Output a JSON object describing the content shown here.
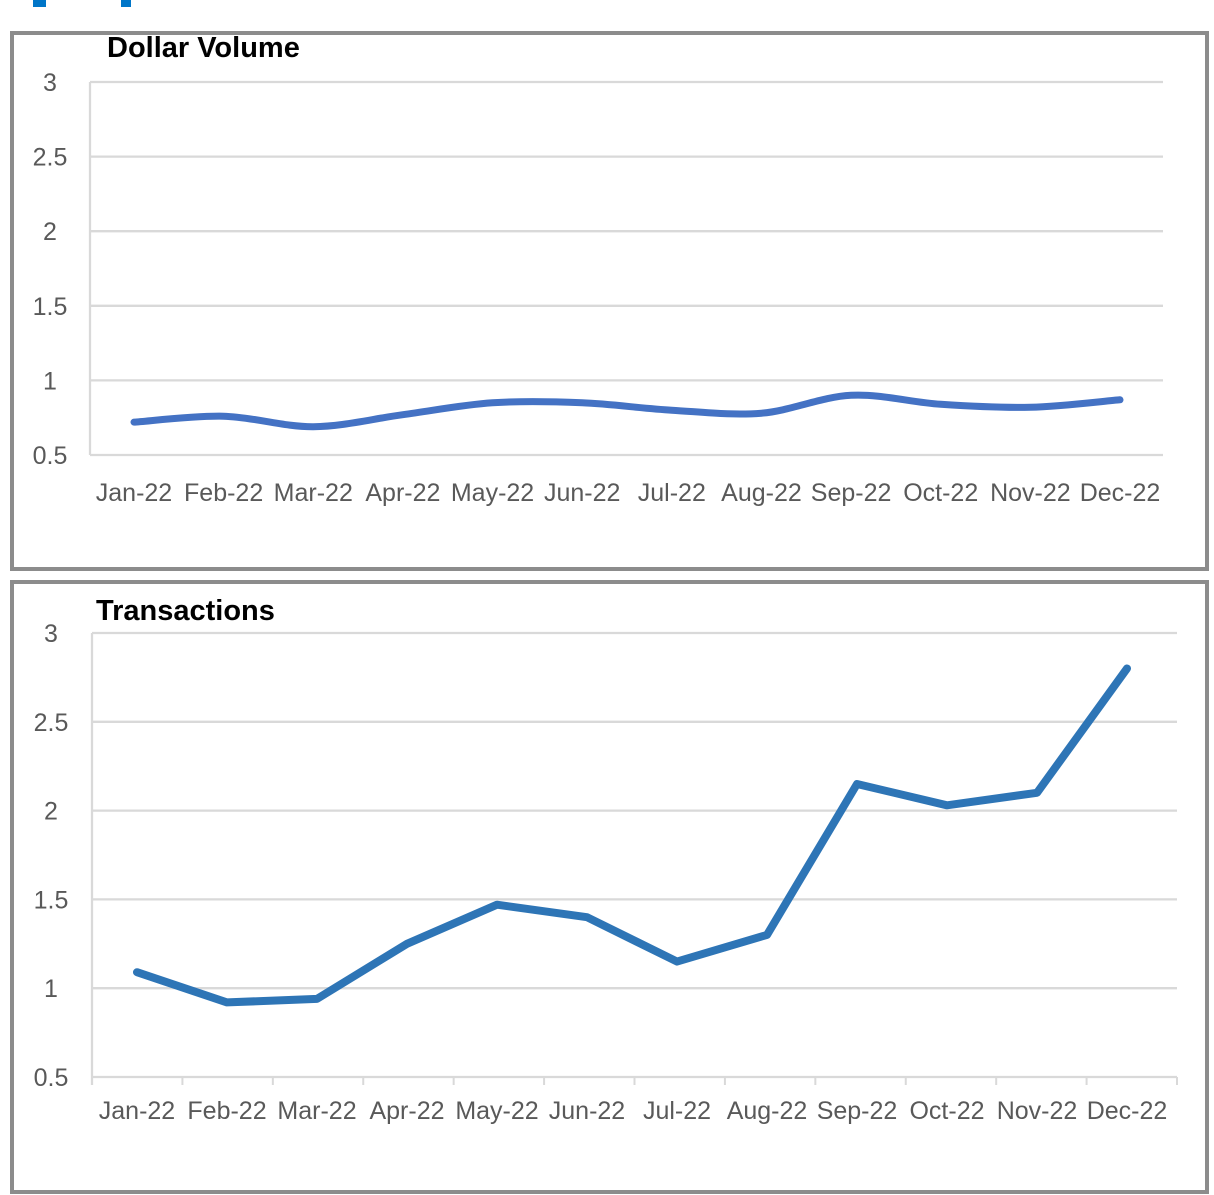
{
  "clipped_top_text": {
    "note_color": "#0076C8"
  },
  "axis_style": {
    "grid_color": "#D9D9D9",
    "label_color": "#595959"
  },
  "chart_data": [
    {
      "type": "line",
      "title": "Dollar Volume",
      "line_color": "#4472C4",
      "smooth": true,
      "categories": [
        "Jan-22",
        "Feb-22",
        "Mar-22",
        "Apr-22",
        "May-22",
        "Jun-22",
        "Jul-22",
        "Aug-22",
        "Sep-22",
        "Oct-22",
        "Nov-22",
        "Dec-22"
      ],
      "values": [
        0.72,
        0.76,
        0.69,
        0.77,
        0.85,
        0.85,
        0.8,
        0.78,
        0.9,
        0.84,
        0.82,
        0.87
      ],
      "y_ticks": [
        3,
        2.5,
        2,
        1.5,
        1,
        0.5
      ],
      "ylim": [
        0.5,
        3
      ],
      "xlabel": "",
      "ylabel": "",
      "grid": true,
      "legend": "none"
    },
    {
      "type": "line",
      "title": "Transactions",
      "line_color": "#2E75B6",
      "smooth": false,
      "categories": [
        "Jan-22",
        "Feb-22",
        "Mar-22",
        "Apr-22",
        "May-22",
        "Jun-22",
        "Jul-22",
        "Aug-22",
        "Sep-22",
        "Oct-22",
        "Nov-22",
        "Dec-22"
      ],
      "values": [
        1.09,
        0.92,
        0.94,
        1.25,
        1.47,
        1.4,
        1.15,
        1.3,
        2.15,
        2.03,
        2.1,
        2.8
      ],
      "y_ticks": [
        3,
        2.5,
        2,
        1.5,
        1,
        0.5
      ],
      "ylim": [
        0.5,
        3
      ],
      "xlabel": "",
      "ylabel": "",
      "grid": true,
      "legend": "none"
    }
  ]
}
